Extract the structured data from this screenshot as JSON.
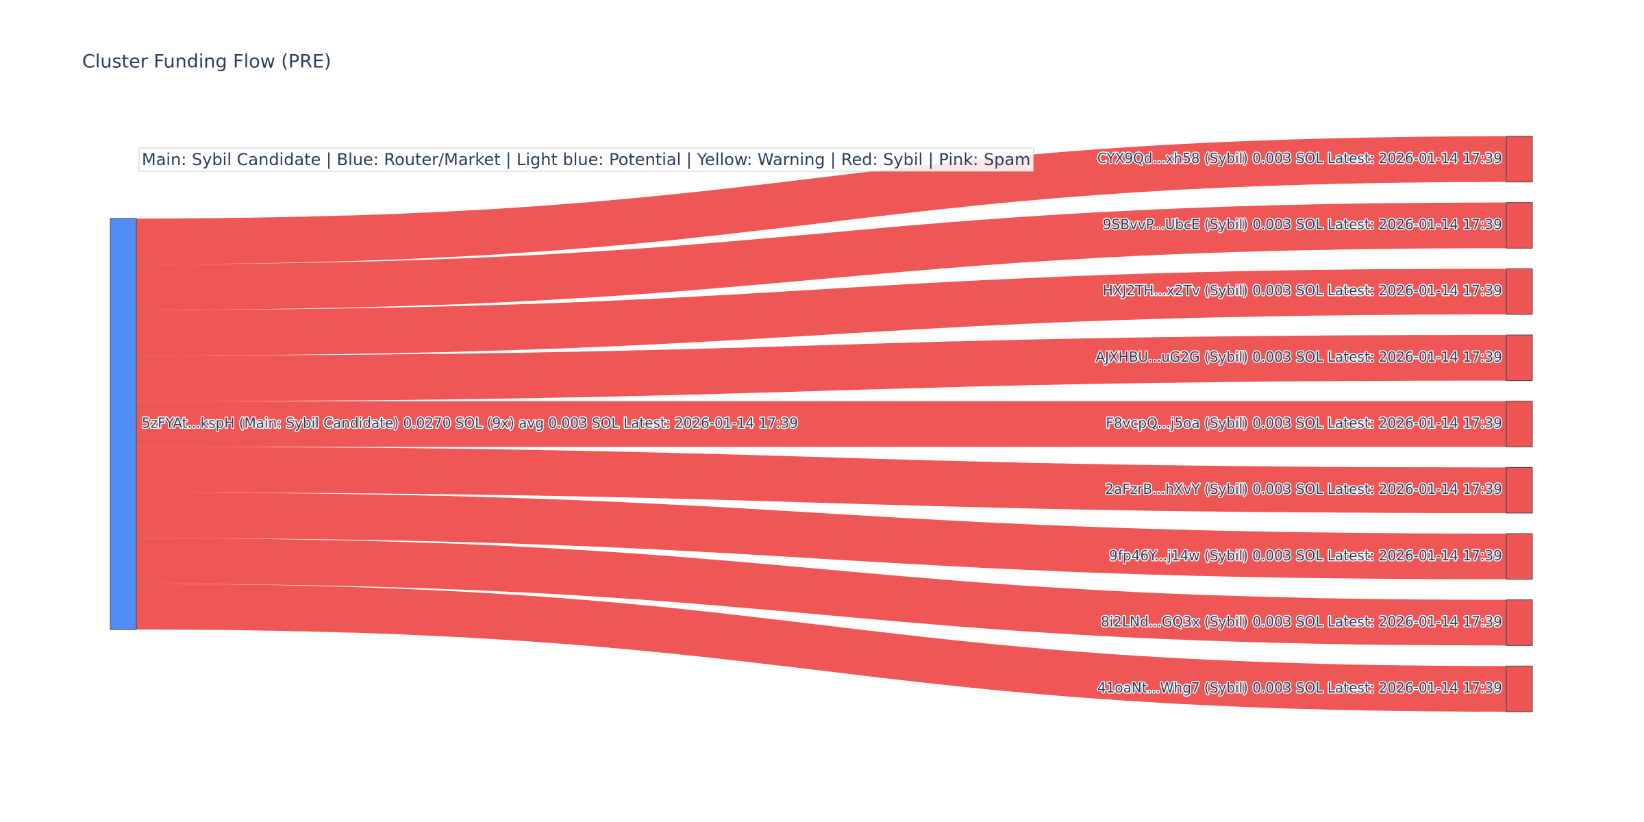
{
  "chart_data": {
    "type": "sankey",
    "title": "Cluster Funding Flow (PRE)",
    "annotation": "Main: Sybil Candidate  |  Blue: Router/Market | Light blue: Potential | Yellow: Warning | Red: Sybil | Pink: Spam",
    "nodes": [
      {
        "label": "5zFYAt...kspH (Main: Sybil Candidate) 0.0270 SOL (9x) avg 0.003 SOL Latest: 2026-01-14 17:39",
        "color": "#4f8ef7"
      },
      {
        "label": "CYX9Qd...xh58 (Sybil) 0.003 SOL Latest: 2026-01-14 17:39",
        "color": "#ef5555"
      },
      {
        "label": "9SBvvP...UbcE (Sybil) 0.003 SOL Latest: 2026-01-14 17:39",
        "color": "#ef5555"
      },
      {
        "label": "HXJ2TH...x2Tv (Sybil) 0.003 SOL Latest: 2026-01-14 17:39",
        "color": "#ef5555"
      },
      {
        "label": "AJXHBU...uG2G (Sybil) 0.003 SOL Latest: 2026-01-14 17:39",
        "color": "#ef5555"
      },
      {
        "label": "F8vcpQ...j5oa (Sybil) 0.003 SOL Latest: 2026-01-14 17:39",
        "color": "#ef5555"
      },
      {
        "label": "2aFzrB...hXvY (Sybil) 0.003 SOL Latest: 2026-01-14 17:39",
        "color": "#ef5555"
      },
      {
        "label": "9fp46Y...j14w (Sybil) 0.003 SOL Latest: 2026-01-14 17:39",
        "color": "#ef5555"
      },
      {
        "label": "8i2LNd...GQ3x (Sybil) 0.003 SOL Latest: 2026-01-14 17:39",
        "color": "#ef5555"
      },
      {
        "label": "41oaNt...Whg7 (Sybil) 0.003 SOL Latest: 2026-01-14 17:39",
        "color": "#ef5555"
      }
    ],
    "links": [
      {
        "source": 0,
        "target": 1,
        "value": 0.003
      },
      {
        "source": 0,
        "target": 2,
        "value": 0.003
      },
      {
        "source": 0,
        "target": 3,
        "value": 0.003
      },
      {
        "source": 0,
        "target": 4,
        "value": 0.003
      },
      {
        "source": 0,
        "target": 5,
        "value": 0.003
      },
      {
        "source": 0,
        "target": 6,
        "value": 0.003
      },
      {
        "source": 0,
        "target": 7,
        "value": 0.003
      },
      {
        "source": 0,
        "target": 8,
        "value": 0.003
      },
      {
        "source": 0,
        "target": 9,
        "value": 0.003
      }
    ],
    "link_color": "#ef5555"
  }
}
